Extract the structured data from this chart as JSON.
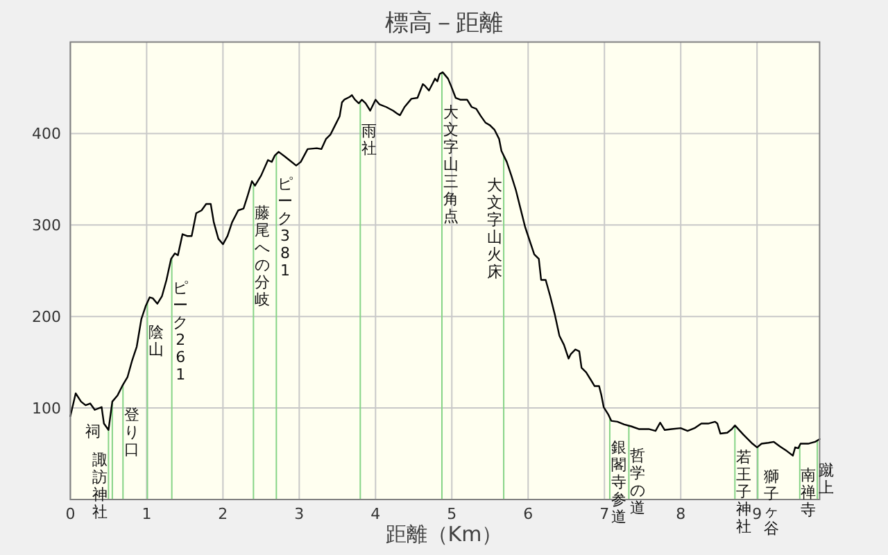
{
  "chart_data": {
    "type": "line",
    "title": "標高－距離",
    "xlabel": "距離（Km）",
    "xlim": [
      0,
      9.82
    ],
    "ylim": [
      0,
      500
    ],
    "xticks": [
      0,
      1,
      2,
      3,
      4,
      5,
      6,
      7,
      8,
      9
    ],
    "yticks": [
      100,
      200,
      300,
      400
    ],
    "grid": true,
    "color": "#000000",
    "x": [
      0,
      0.07,
      0.14,
      0.2,
      0.26,
      0.32,
      0.41,
      0.44,
      0.5,
      0.55,
      0.62,
      0.68,
      0.75,
      0.81,
      0.87,
      0.93,
      0.99,
      1.04,
      1.08,
      1.14,
      1.2,
      1.26,
      1.32,
      1.37,
      1.41,
      1.47,
      1.53,
      1.59,
      1.65,
      1.72,
      1.78,
      1.84,
      1.88,
      1.94,
      2.0,
      2.06,
      2.12,
      2.2,
      2.27,
      2.32,
      2.38,
      2.42,
      2.5,
      2.59,
      2.64,
      2.68,
      2.73,
      2.81,
      2.87,
      2.96,
      3.02,
      3.11,
      3.23,
      3.29,
      3.35,
      3.41,
      3.47,
      3.53,
      3.56,
      3.59,
      3.66,
      3.69,
      3.73,
      3.78,
      3.82,
      3.87,
      3.93,
      4.0,
      4.05,
      4.14,
      4.23,
      4.28,
      4.32,
      4.38,
      4.47,
      4.55,
      4.62,
      4.65,
      4.7,
      4.75,
      4.78,
      4.81,
      4.84,
      4.88,
      4.95,
      4.99,
      5.05,
      5.11,
      5.2,
      5.26,
      5.32,
      5.38,
      5.44,
      5.5,
      5.56,
      5.62,
      5.65,
      5.72,
      5.78,
      5.84,
      5.9,
      5.96,
      6.08,
      6.14,
      6.17,
      6.23,
      6.29,
      6.35,
      6.41,
      6.47,
      6.53,
      6.56,
      6.62,
      6.67,
      6.7,
      6.76,
      6.82,
      6.87,
      6.93,
      6.96,
      6.99,
      7.05,
      7.09,
      7.17,
      7.26,
      7.35,
      7.45,
      7.58,
      7.67,
      7.73,
      7.79,
      7.88,
      8.0,
      8.09,
      8.18,
      8.27,
      8.36,
      8.45,
      8.48,
      8.52,
      8.61,
      8.67,
      8.71,
      8.82,
      8.94,
      9.0,
      9.06,
      9.15,
      9.22,
      9.3,
      9.39,
      9.47,
      9.5,
      9.54,
      9.57,
      9.67,
      9.76,
      9.82
    ],
    "values": [
      91,
      116,
      107,
      103,
      105,
      98,
      101,
      83,
      76,
      107,
      114,
      124,
      134,
      152,
      167,
      197,
      212,
      221,
      220,
      214,
      222,
      240,
      263,
      269,
      267,
      290,
      288,
      288,
      313,
      316,
      323,
      323,
      303,
      285,
      279,
      288,
      303,
      316,
      318,
      331,
      348,
      343,
      354,
      371,
      369,
      376,
      380,
      375,
      371,
      365,
      369,
      383,
      384,
      383,
      394,
      399,
      409,
      419,
      434,
      437,
      440,
      442,
      437,
      433,
      437,
      433,
      425,
      437,
      432,
      429,
      425,
      422,
      420,
      429,
      438,
      439,
      454,
      452,
      447,
      455,
      460,
      457,
      465,
      467,
      460,
      452,
      439,
      437,
      437,
      429,
      427,
      419,
      412,
      409,
      404,
      394,
      381,
      369,
      354,
      338,
      318,
      298,
      268,
      263,
      240,
      240,
      222,
      202,
      179,
      169,
      154,
      159,
      164,
      162,
      144,
      139,
      131,
      124,
      124,
      114,
      101,
      93,
      86,
      85,
      82,
      80,
      77,
      77,
      75,
      84,
      76,
      77,
      78,
      75,
      78,
      83,
      83,
      85,
      83,
      72,
      73,
      77,
      81,
      71,
      61,
      57,
      61,
      62,
      63,
      58,
      53,
      48,
      57,
      56,
      61,
      61,
      63,
      66
    ],
    "ref_lines": [
      {
        "axis": "x",
        "value": 0.5,
        "label": "諏訪神社",
        "color": "#86d486"
      },
      {
        "axis": "x",
        "value": 0.55,
        "label": "祠",
        "color": "#86d486"
      },
      {
        "axis": "x",
        "value": 0.69,
        "label": "登り口",
        "color": "#86d486"
      },
      {
        "axis": "x",
        "value": 1.01,
        "label": "陰山",
        "color": "#86d486"
      },
      {
        "axis": "x",
        "value": 1.33,
        "label": "ピーク261",
        "color": "#86d486"
      },
      {
        "axis": "x",
        "value": 2.4,
        "label": "藤尾への分岐",
        "color": "#86d486"
      },
      {
        "axis": "x",
        "value": 2.7,
        "label": "ピーク381",
        "color": "#86d486"
      },
      {
        "axis": "x",
        "value": 3.8,
        "label": "雨社",
        "color": "#86d486"
      },
      {
        "axis": "x",
        "value": 4.87,
        "label": "大文字山三角点",
        "color": "#86d486"
      },
      {
        "axis": "x",
        "value": 5.68,
        "label": "大文字山火床",
        "color": "#86d486"
      },
      {
        "axis": "x",
        "value": 7.07,
        "label": "銀閣寺参道",
        "color": "#86d486"
      },
      {
        "axis": "x",
        "value": 7.32,
        "label": "哲学の道",
        "color": "#86d486"
      },
      {
        "axis": "x",
        "value": 8.71,
        "label": "若王子神社",
        "color": "#86d486"
      },
      {
        "axis": "x",
        "value": 9.01,
        "label": "獅子ヶ谷",
        "color": "#86d486"
      },
      {
        "axis": "x",
        "value": 9.56,
        "label": "南禅寺",
        "color": "#86d486"
      },
      {
        "axis": "x",
        "value": 9.79,
        "label": "蹴上",
        "color": "#86d486"
      }
    ]
  }
}
